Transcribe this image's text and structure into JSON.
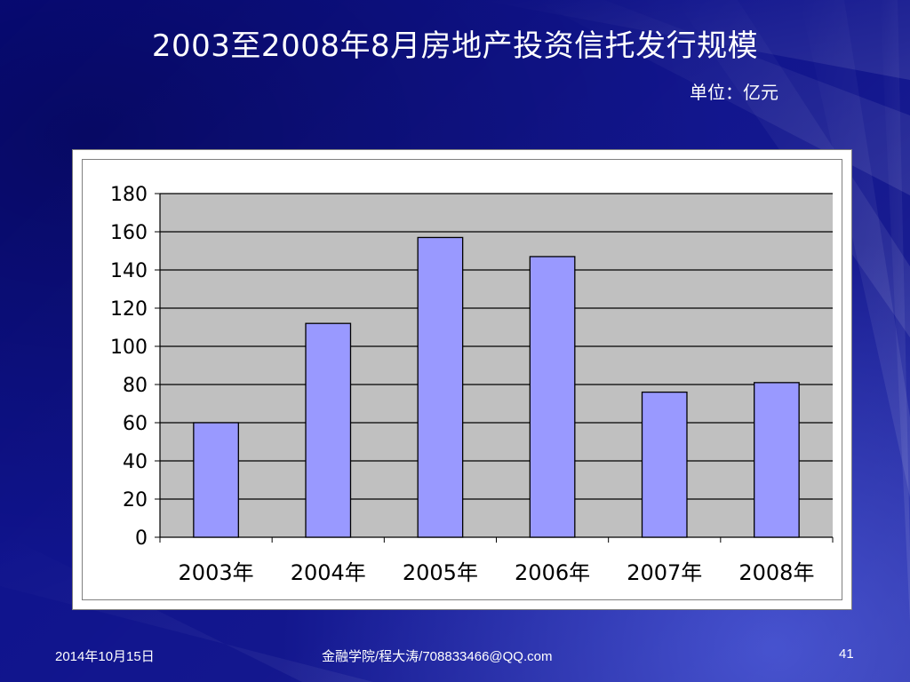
{
  "slide": {
    "title": "2003至2008年8月房地产投资信托发行规模",
    "unit": "单位：亿元"
  },
  "footer": {
    "date": "2014年10月15日",
    "author": "金融学院/程大涛/708833466@QQ.com",
    "page": "41"
  },
  "colors": {
    "background": "#0a0e8a",
    "bar_fill": "#9999ff",
    "plot_area": "#c0c0c0",
    "gridline": "#000000"
  },
  "chart_data": {
    "type": "bar",
    "categories": [
      "2003年",
      "2004年",
      "2005年",
      "2006年",
      "2007年",
      "2008年"
    ],
    "values": [
      60,
      112,
      157,
      147,
      76,
      81
    ],
    "title": "",
    "xlabel": "",
    "ylabel": "",
    "ylim": [
      0,
      180
    ],
    "yticks": [
      "0",
      "20",
      "40",
      "60",
      "80",
      "100",
      "120",
      "140",
      "160",
      "180"
    ],
    "grid": true,
    "legend": "none"
  }
}
